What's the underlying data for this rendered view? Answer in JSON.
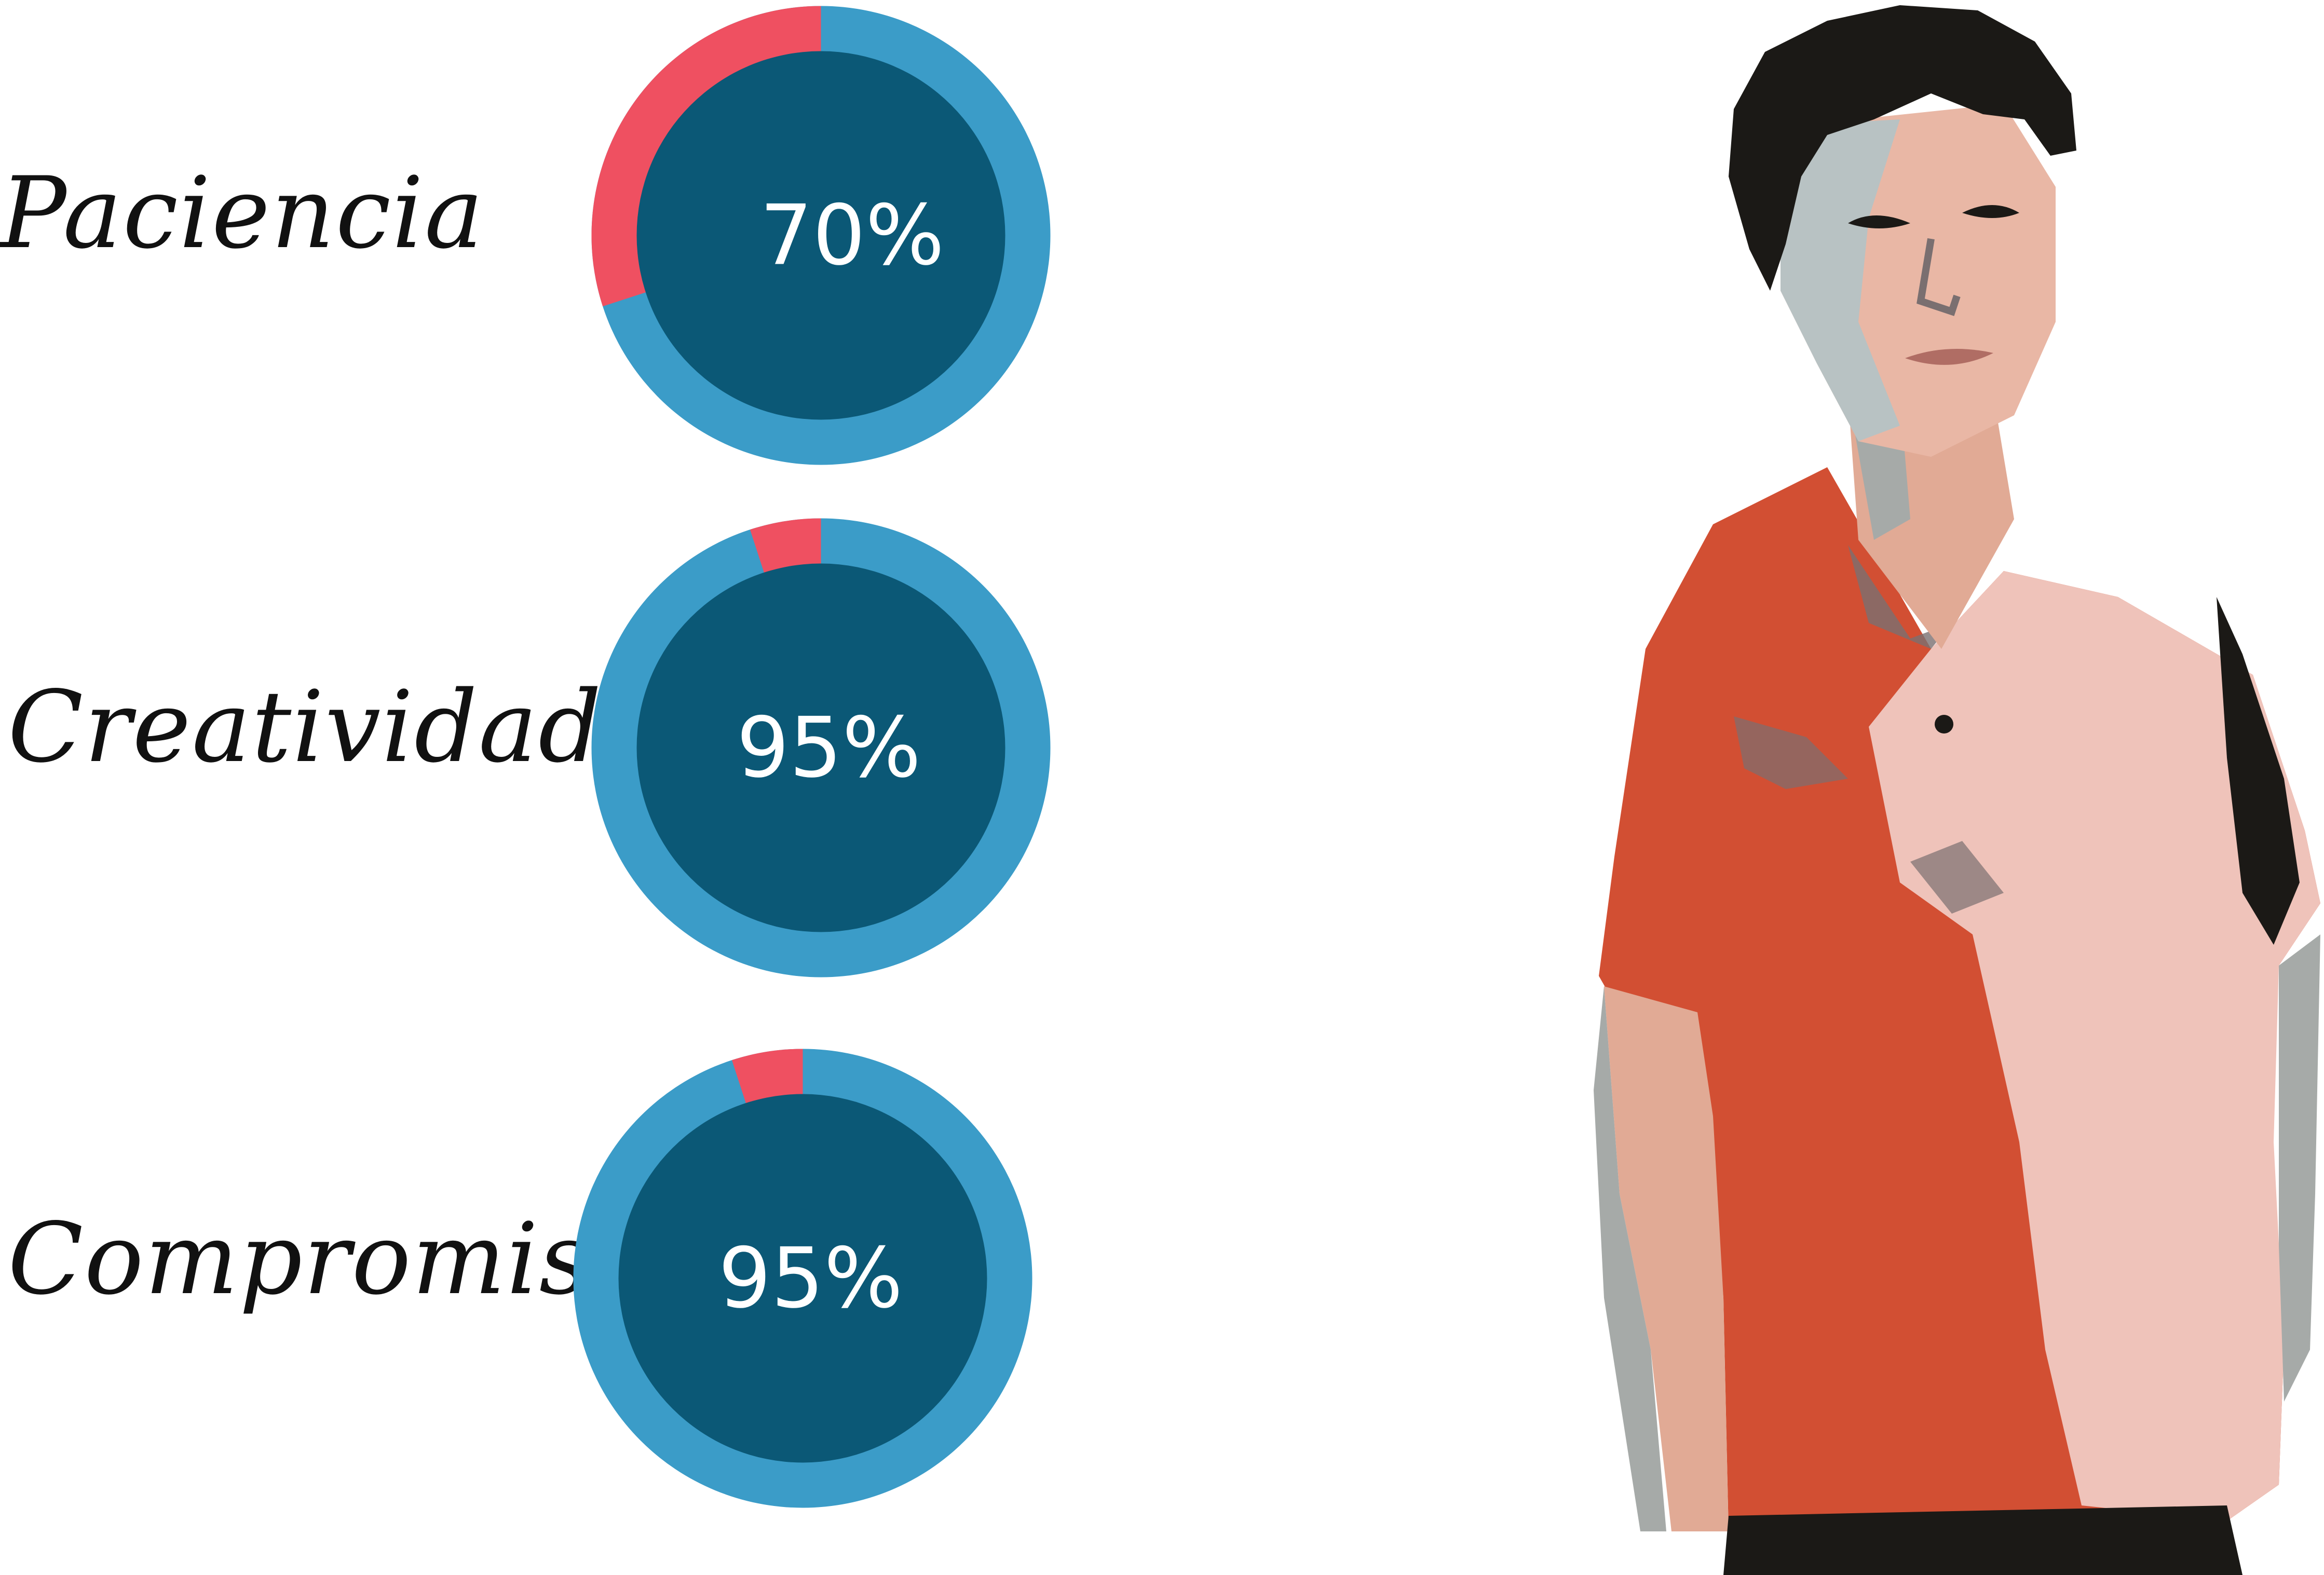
{
  "colors": {
    "ring": "#3b9cc8",
    "ring_remainder": "#ef5061",
    "disc": "#0b5876",
    "value_text": "#ffffff",
    "label_text": "#111111"
  },
  "chart_data": {
    "type": "pie",
    "items": [
      {
        "label": "Paciencia",
        "value": 70,
        "value_text": "70%"
      },
      {
        "label": "Creatividad",
        "value": 95,
        "value_text": "95%"
      },
      {
        "label": "Compromiso",
        "value": 95,
        "value_text": "95%"
      }
    ]
  },
  "portrait": {
    "description_icon": "person-portrait-illustration"
  }
}
